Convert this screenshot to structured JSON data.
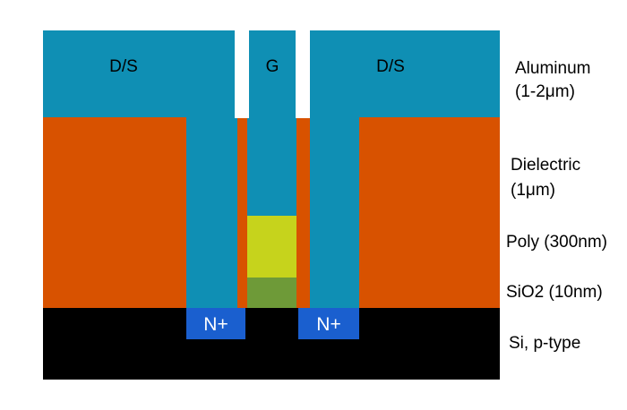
{
  "colors": {
    "aluminum": "#0f8fb4",
    "dielectric": "#d85200",
    "poly": "#c6d31c",
    "sio2": "#6e9a38",
    "silicon": "#000000",
    "nplus": "#1a5fcf",
    "gap": "#ffffff"
  },
  "layers": {
    "aluminum": {
      "line1": "Aluminum",
      "line2": "(1-2μm)"
    },
    "dielectric": {
      "line1": "Dielectric",
      "line2": "(1μm)"
    },
    "poly": {
      "label": "Poly (300nm)"
    },
    "sio2": {
      "label": "SiO2 (10nm)"
    },
    "silicon": {
      "label": "Si, p-type"
    }
  },
  "contacts": {
    "source_drain_left": "D/S",
    "gate": "G",
    "source_drain_right": "D/S"
  },
  "diffusions": {
    "left": "N+",
    "right": "N+"
  }
}
